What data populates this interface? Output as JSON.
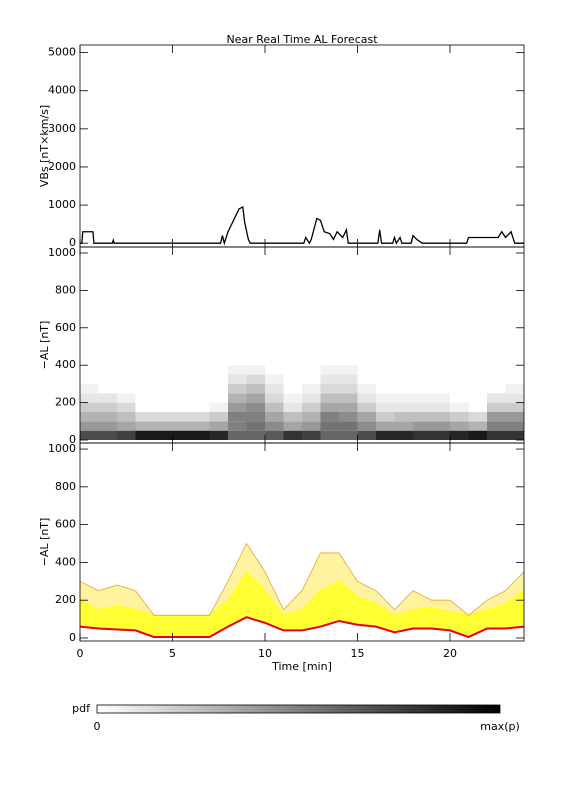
{
  "chart_data": [
    {
      "type": "line",
      "title": "Near Real Time AL Forecast",
      "ylabel": "VBs [nT×km/s]",
      "xlim": [
        0,
        24
      ],
      "xticks": [
        0,
        5,
        10,
        15,
        20
      ],
      "ylim": [
        -100,
        5200
      ],
      "yticks": [
        0,
        1000,
        2000,
        3000,
        4000,
        5000
      ],
      "series": [
        {
          "color": "#000000",
          "x": [
            0,
            0.1,
            0.15,
            0.7,
            0.75,
            1.75,
            1.8,
            1.85,
            7.6,
            7.7,
            7.8,
            8.0,
            8.3,
            8.6,
            8.8,
            8.9,
            9.1,
            9.2,
            12.1,
            12.2,
            12.4,
            12.5,
            12.8,
            13.0,
            13.2,
            13.5,
            13.7,
            13.9,
            14.2,
            14.4,
            14.5,
            16.1,
            16.2,
            16.3,
            16.9,
            17.0,
            17.1,
            17.3,
            17.4,
            17.9,
            18.0,
            18.2,
            18.5,
            20.9,
            21.0,
            22.6,
            22.8,
            23.0,
            23.3,
            23.5,
            24
          ],
          "values": [
            0,
            0,
            300,
            300,
            0,
            0,
            80,
            0,
            0,
            200,
            0,
            300,
            600,
            900,
            950,
            550,
            100,
            0,
            0,
            150,
            0,
            100,
            650,
            600,
            300,
            250,
            100,
            300,
            150,
            350,
            0,
            0,
            350,
            0,
            0,
            150,
            0,
            150,
            0,
            0,
            200,
            100,
            0,
            0,
            150,
            150,
            300,
            150,
            300,
            0,
            0
          ]
        }
      ]
    },
    {
      "type": "heatmap",
      "ylabel": "−AL [nT]",
      "xlim": [
        0,
        24
      ],
      "xticks": [
        0,
        5,
        10,
        15,
        20
      ],
      "ylim": [
        -16,
        1032
      ],
      "yticks": [
        0,
        200,
        400,
        600,
        800,
        1000
      ],
      "xbins": [
        0,
        1,
        2,
        3,
        4,
        5,
        6,
        7,
        8,
        9,
        10,
        11,
        12,
        13,
        14,
        15,
        16,
        17,
        18,
        19,
        20,
        21,
        22,
        23,
        24
      ],
      "ybins": [
        0,
        50,
        100,
        150,
        200,
        250,
        300,
        350,
        400
      ],
      "z": [
        [
          0.7,
          0.4,
          0.3,
          0.2,
          0.1,
          0.05,
          0,
          0
        ],
        [
          0.7,
          0.4,
          0.3,
          0.2,
          0.1,
          0,
          0,
          0
        ],
        [
          0.75,
          0.35,
          0.25,
          0.15,
          0.05,
          0,
          0,
          0
        ],
        [
          0.9,
          0.3,
          0.15,
          0,
          0,
          0,
          0,
          0
        ],
        [
          0.9,
          0.3,
          0.15,
          0,
          0,
          0,
          0,
          0
        ],
        [
          0.9,
          0.3,
          0.15,
          0,
          0,
          0,
          0,
          0
        ],
        [
          0.9,
          0.3,
          0.15,
          0,
          0,
          0,
          0,
          0
        ],
        [
          0.85,
          0.35,
          0.2,
          0.05,
          0,
          0,
          0,
          0
        ],
        [
          0.6,
          0.5,
          0.5,
          0.4,
          0.3,
          0.2,
          0.1,
          0.05
        ],
        [
          0.6,
          0.55,
          0.5,
          0.45,
          0.35,
          0.25,
          0.15,
          0.05
        ],
        [
          0.65,
          0.45,
          0.35,
          0.25,
          0.15,
          0.1,
          0.05,
          0
        ],
        [
          0.8,
          0.35,
          0.25,
          0.1,
          0.05,
          0,
          0,
          0
        ],
        [
          0.75,
          0.4,
          0.3,
          0.2,
          0.1,
          0.05,
          0,
          0
        ],
        [
          0.6,
          0.55,
          0.5,
          0.35,
          0.25,
          0.15,
          0.1,
          0.05
        ],
        [
          0.6,
          0.55,
          0.45,
          0.35,
          0.25,
          0.15,
          0.1,
          0.05
        ],
        [
          0.7,
          0.45,
          0.35,
          0.2,
          0.1,
          0.05,
          0,
          0
        ],
        [
          0.85,
          0.35,
          0.2,
          0.1,
          0.05,
          0,
          0,
          0
        ],
        [
          0.85,
          0.35,
          0.25,
          0.1,
          0.05,
          0,
          0,
          0
        ],
        [
          0.8,
          0.4,
          0.25,
          0.1,
          0.05,
          0,
          0,
          0
        ],
        [
          0.8,
          0.4,
          0.25,
          0.1,
          0.05,
          0,
          0,
          0
        ],
        [
          0.85,
          0.35,
          0.2,
          0.05,
          0,
          0,
          0,
          0
        ],
        [
          0.9,
          0.3,
          0.15,
          0,
          0,
          0,
          0,
          0
        ],
        [
          0.8,
          0.5,
          0.4,
          0.2,
          0.1,
          0,
          0,
          0
        ],
        [
          0.8,
          0.5,
          0.4,
          0.2,
          0.1,
          0.05,
          0,
          0
        ]
      ]
    },
    {
      "type": "area",
      "ylabel": "−AL [nT]",
      "xlabel": "Time [min]",
      "xlim": [
        0,
        24
      ],
      "xticks": [
        0,
        5,
        10,
        15,
        20
      ],
      "ylim": [
        -16,
        1032
      ],
      "yticks": [
        0,
        200,
        400,
        600,
        800,
        1000
      ],
      "x": [
        0,
        1,
        2,
        3,
        4,
        5,
        6,
        7,
        8,
        9,
        10,
        11,
        12,
        13,
        14,
        15,
        16,
        17,
        18,
        19,
        20,
        21,
        22,
        23,
        24
      ],
      "series": [
        {
          "color": "#e6001a",
          "values": [
            60,
            50,
            45,
            40,
            5,
            5,
            5,
            5,
            60,
            110,
            80,
            40,
            40,
            60,
            90,
            70,
            60,
            30,
            50,
            50,
            40,
            5,
            50,
            50,
            60
          ]
        },
        {
          "color": "#ffff00",
          "values": [
            200,
            150,
            170,
            150,
            120,
            120,
            120,
            120,
            200,
            350,
            250,
            120,
            150,
            250,
            300,
            220,
            180,
            120,
            150,
            160,
            140,
            120,
            150,
            180,
            250
          ]
        },
        {
          "color": "#f0a030",
          "values": [
            300,
            250,
            280,
            250,
            120,
            120,
            120,
            120,
            300,
            500,
            350,
            150,
            250,
            450,
            450,
            300,
            250,
            150,
            250,
            200,
            200,
            120,
            200,
            250,
            350
          ]
        }
      ]
    }
  ],
  "colorbar": {
    "label": "pdf",
    "min_label": "0",
    "max_label": "max(p)"
  }
}
